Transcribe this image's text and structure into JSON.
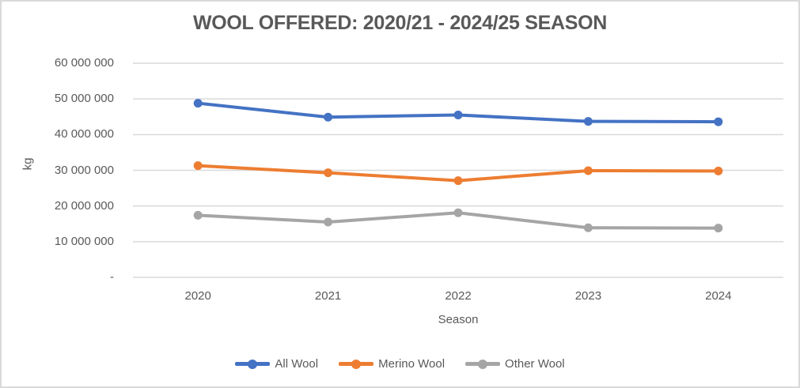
{
  "figure": {
    "background": "#FFFFFF",
    "border_color": "#D9D9D9"
  },
  "chart_data": {
    "type": "line",
    "title": "WOOL OFFERED: 2020/21 - 2024/25 SEASON",
    "categories": [
      "2020",
      "2021",
      "2022",
      "2023",
      "2024"
    ],
    "series": [
      {
        "name": "All Wool",
        "color": "#4472C4",
        "values": [
          48800000,
          44900000,
          45500000,
          43700000,
          43600000
        ]
      },
      {
        "name": "Merino Wool",
        "color": "#ED7D31",
        "values": [
          31300000,
          29300000,
          27100000,
          29900000,
          29800000
        ]
      },
      {
        "name": "Other Wool",
        "color": "#A5A5A5",
        "values": [
          17400000,
          15500000,
          18100000,
          13900000,
          13800000
        ]
      }
    ],
    "xlabel": "Season",
    "ylabel": "kg",
    "ylim": [
      0,
      60000000
    ],
    "ytick_step": 10000000,
    "ytick_labels": [
      "-",
      "10 000 000",
      "20 000 000",
      "30 000 000",
      "40 000 000",
      "50 000 000",
      "60 000 000"
    ],
    "grid": true,
    "legend_position": "bottom",
    "marker": "circle"
  },
  "style": {
    "title_color": "#595959",
    "axis_text_color": "#595959",
    "gridline_color": "#D9D9D9",
    "legend_text_color": "#595959"
  }
}
